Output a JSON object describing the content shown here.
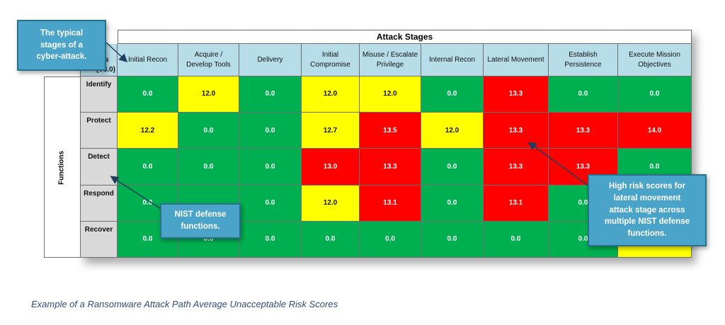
{
  "chart_data": {
    "type": "heatmap",
    "title": "Attack Stages",
    "ylabel": "Functions",
    "corner_label_lines": [
      "ls",
      "(V8.0)"
    ],
    "columns": [
      [
        "Initial Recon"
      ],
      [
        "Acquire /",
        "Develop Tools"
      ],
      [
        "Delivery"
      ],
      [
        "Initial",
        "Compromise"
      ],
      [
        "Misuse / Escalate",
        "Privilege"
      ],
      [
        "Internal Recon"
      ],
      [
        "Lateral Movement"
      ],
      [
        "Establish",
        "Persistence"
      ],
      [
        "Execute Mission",
        "Objectives"
      ]
    ],
    "rows": [
      {
        "label": "Identify",
        "values": [
          0.0,
          12.0,
          0.0,
          12.0,
          12.0,
          0.0,
          13.3,
          0.0,
          0.0
        ],
        "colors": [
          "g",
          "y",
          "g",
          "y",
          "y",
          "g",
          "r",
          "g",
          "g"
        ],
        "display": [
          "0.0",
          "12.0",
          "0.0",
          "12.0",
          "12.0",
          "0.0",
          "13.3",
          "0.0",
          "0.0"
        ]
      },
      {
        "label": "Protect",
        "values": [
          12.2,
          0.0,
          0.0,
          12.7,
          13.5,
          12.0,
          13.3,
          13.3,
          14.0
        ],
        "colors": [
          "y",
          "g",
          "g",
          "y",
          "r",
          "y",
          "r",
          "r",
          "r"
        ],
        "display": [
          "12.2",
          "0.0",
          "0.0",
          "12.7",
          "13.5",
          "12.0",
          "13.3",
          "13.3",
          "14.0"
        ]
      },
      {
        "label": "Detect",
        "values": [
          0.0,
          0.0,
          0.0,
          13.0,
          13.3,
          0.0,
          13.3,
          13.3,
          0.0
        ],
        "colors": [
          "g",
          "g",
          "g",
          "r",
          "r",
          "g",
          "r",
          "r",
          "g"
        ],
        "display": [
          "0.0",
          "0.0",
          "0.0",
          "13.0",
          "13.3",
          "0.0",
          "13.3",
          "13.3",
          "0.0"
        ]
      },
      {
        "label": "Respond",
        "values": [
          0.0,
          null,
          0.0,
          12.0,
          13.1,
          0.0,
          13.1,
          0.0,
          null
        ],
        "colors": [
          "g",
          "g",
          "g",
          "y",
          "r",
          "g",
          "r",
          "g",
          "g"
        ],
        "display": [
          "0.0",
          "",
          "0.0",
          "12.0",
          "13.1",
          "0.0",
          "13.1",
          "0.0",
          ""
        ]
      },
      {
        "label": "Recover",
        "values": [
          0.0,
          0.0,
          0.0,
          0.0,
          0.0,
          0.0,
          0.0,
          0.0,
          null
        ],
        "colors": [
          "g",
          "g",
          "g",
          "g",
          "g",
          "g",
          "g",
          "g",
          "y"
        ],
        "display": [
          "0.0",
          "0.0",
          "0.0",
          "0.0",
          "0.0",
          "0.0",
          "0.0",
          "0.0",
          ""
        ]
      }
    ],
    "color_scale": {
      "g": "#00b050",
      "y": "#ffff00",
      "r": "#ff0000"
    }
  },
  "callouts": {
    "stages": [
      "The typical",
      "stages of a",
      "cyber-attack."
    ],
    "nist": [
      "NIST defense",
      "functions."
    ],
    "risk": [
      "High risk scores for",
      "lateral movement",
      "attack stage across",
      "multiple NIST defense",
      "functions."
    ]
  },
  "caption": "Example of a Ransomware Attack Path Average Unacceptable Risk Scores",
  "colors": {
    "callout_fill": "#4aa3c8",
    "header_fill": "#b7dde8",
    "row_label_fill": "#d9d9d9",
    "caption": "#2f4f7a"
  }
}
